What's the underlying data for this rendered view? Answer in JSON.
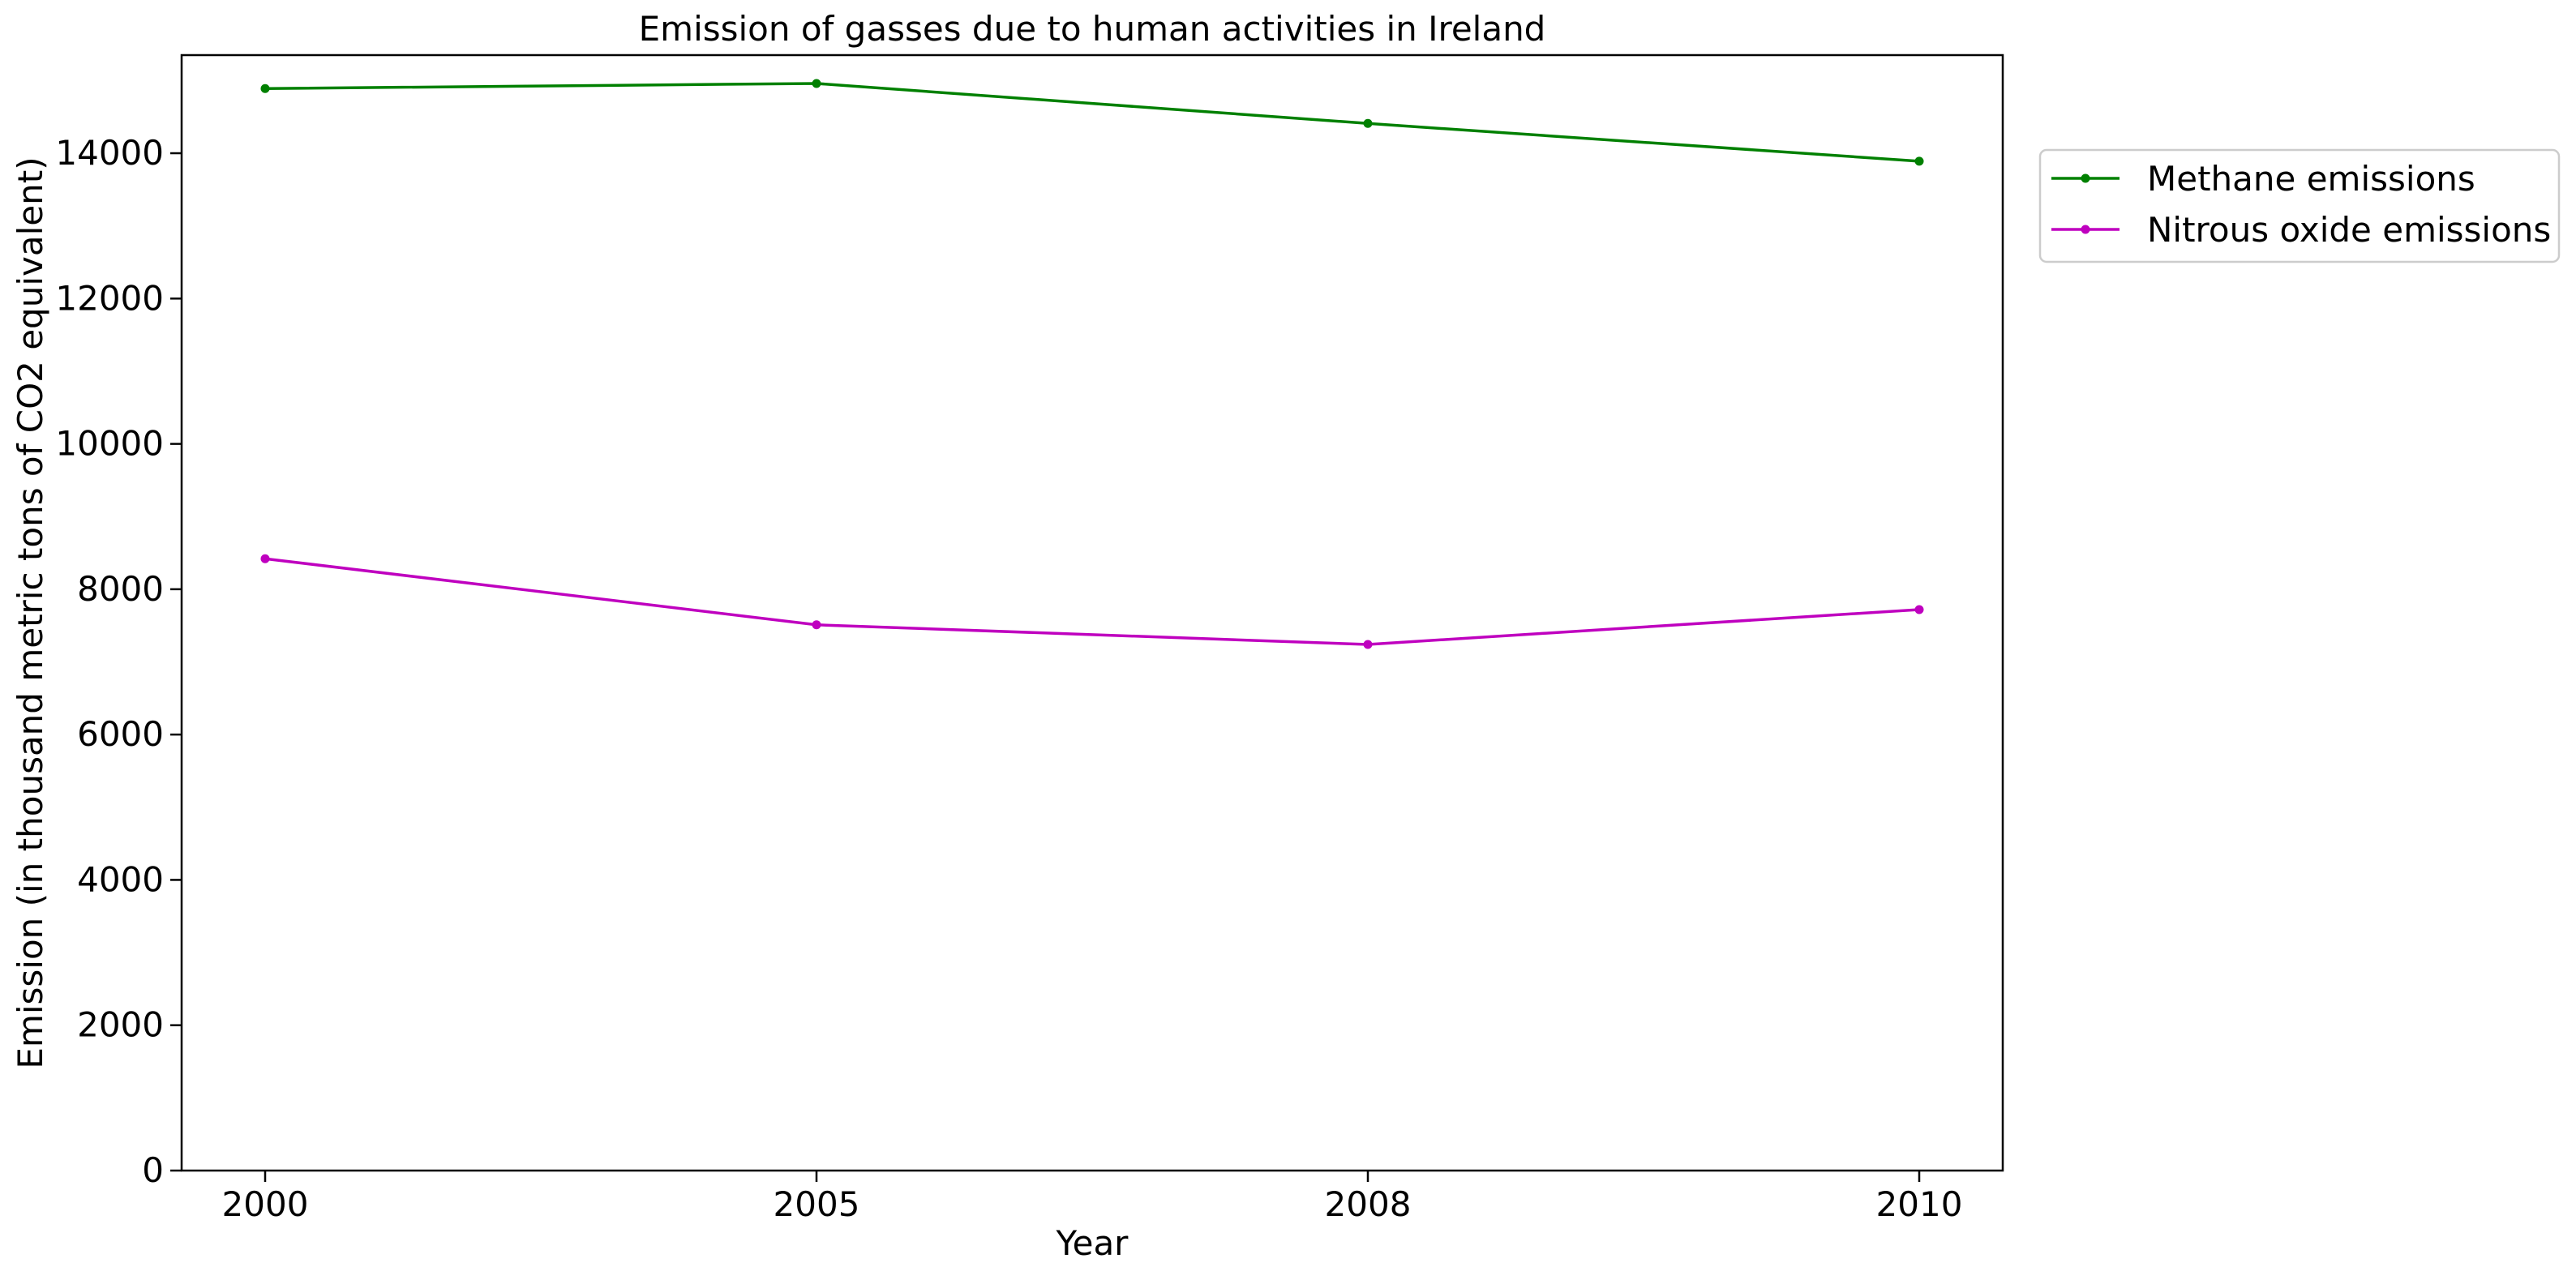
{
  "chart_data": {
    "type": "line",
    "title": "Emission of gasses due to human activities in Ireland",
    "xlabel": "Year",
    "ylabel": "Emission (in thousand metric tons of CO2 equivalent)",
    "categories": [
      "2000",
      "2005",
      "2008",
      "2010"
    ],
    "ylim": [
      0,
      15350
    ],
    "yticks": [
      0,
      2000,
      4000,
      6000,
      8000,
      10000,
      12000,
      14000
    ],
    "grid": false,
    "legend_position": "outside-top-right",
    "series": [
      {
        "name": "Methane emissions",
        "color": "#008000",
        "marker": "circle",
        "values": [
          14890,
          14960,
          14410,
          13890
        ]
      },
      {
        "name": "Nitrous oxide emissions",
        "color": "#bf00bf",
        "marker": "circle",
        "values": [
          8420,
          7510,
          7240,
          7720
        ]
      }
    ]
  }
}
